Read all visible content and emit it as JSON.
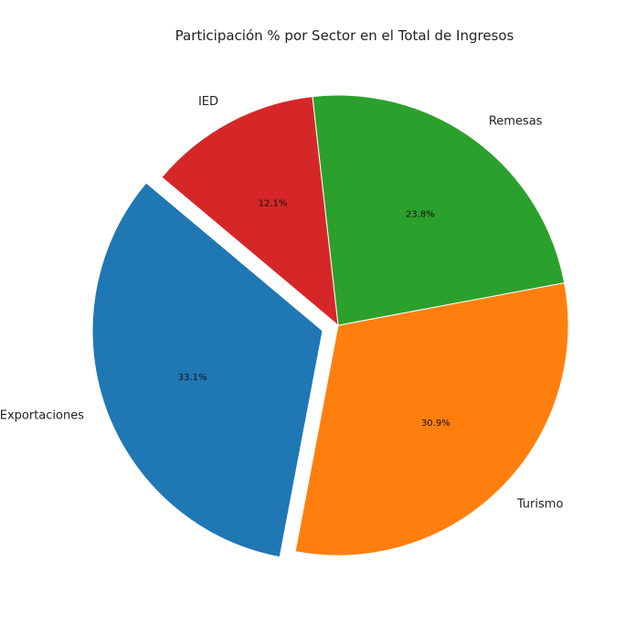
{
  "chart_data": {
    "type": "pie",
    "title": "Participación % por Sector en el Total de Ingresos",
    "slices": [
      {
        "label": "Exportaciones",
        "value": 33.1,
        "pct_label": "33.1%",
        "color": "#1f77b4",
        "explode": true
      },
      {
        "label": "Turismo",
        "value": 30.9,
        "pct_label": "30.9%",
        "color": "#ff7f0e",
        "explode": false
      },
      {
        "label": "Remesas",
        "value": 23.8,
        "pct_label": "23.8%",
        "color": "#2ca02c",
        "explode": false
      },
      {
        "label": "IED",
        "value": 12.1,
        "pct_label": "12.1%",
        "color": "#d62728",
        "explode": false
      }
    ],
    "start_angle_deg": 140,
    "direction": "counterclockwise"
  }
}
